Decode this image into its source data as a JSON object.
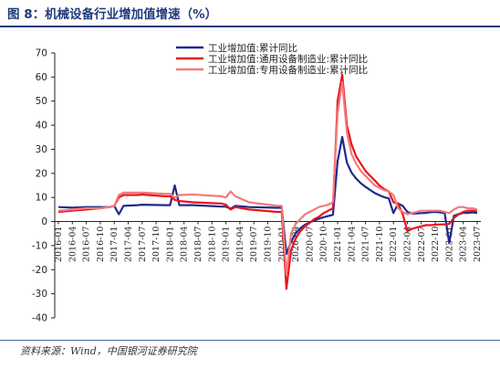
{
  "title": "图 8：机械设备行业增加值增速（%）",
  "source": "资料来源：Wind，中国银河证券研究院",
  "chart_data": {
    "type": "line",
    "title": "图 8：机械设备行业增加值增速（%）",
    "ylim": [
      -40,
      70
    ],
    "yticks": [
      -40,
      -30,
      -20,
      -10,
      0,
      10,
      20,
      30,
      40,
      50,
      60,
      70
    ],
    "xlim": [
      "2016-01",
      "2023-07"
    ],
    "xticks": [
      "2016-01",
      "2016-04",
      "2016-07",
      "2016-10",
      "2017-01",
      "2017-04",
      "2017-07",
      "2017-10",
      "2018-01",
      "2018-04",
      "2018-07",
      "2018-10",
      "2019-01",
      "2019-04",
      "2019-07",
      "2019-10",
      "2020-01",
      "2020-04",
      "2020-07",
      "2020-10",
      "2021-01",
      "2021-04",
      "2021-07",
      "2021-10",
      "2022-01",
      "2022-04",
      "2022-07",
      "2022-10",
      "2023-01",
      "2023-04",
      "2023-07"
    ],
    "grid": false,
    "legend_position": "top-right",
    "series": [
      {
        "name": "工业增加值:累计同比",
        "color": "#1f2a8c",
        "points": [
          [
            "2016-01",
            6
          ],
          [
            "2016-04",
            5.8
          ],
          [
            "2016-07",
            6
          ],
          [
            "2016-10",
            6
          ],
          [
            "2016-12",
            6
          ],
          [
            "2017-01",
            6.5
          ],
          [
            "2017-02",
            3
          ],
          [
            "2017-03",
            6.5
          ],
          [
            "2017-06",
            6.8
          ],
          [
            "2017-07",
            7
          ],
          [
            "2017-12",
            6.8
          ],
          [
            "2018-01",
            6.8
          ],
          [
            "2018-02",
            15
          ],
          [
            "2018-03",
            6.8
          ],
          [
            "2018-06",
            6.8
          ],
          [
            "2018-12",
            6.2
          ],
          [
            "2019-01",
            6.2
          ],
          [
            "2019-02",
            5.3
          ],
          [
            "2019-03",
            6.5
          ],
          [
            "2019-06",
            6
          ],
          [
            "2019-12",
            5.7
          ],
          [
            "2020-01",
            5.7
          ],
          [
            "2020-02",
            -13.5
          ],
          [
            "2020-03",
            -8.4
          ],
          [
            "2020-04",
            -4.9
          ],
          [
            "2020-05",
            -2.8
          ],
          [
            "2020-06",
            -1.3
          ],
          [
            "2020-07",
            -0.4
          ],
          [
            "2020-08",
            0.4
          ],
          [
            "2020-09",
            1.2
          ],
          [
            "2020-10",
            1.8
          ],
          [
            "2020-11",
            2.3
          ],
          [
            "2020-12",
            2.8
          ],
          [
            "2021-01",
            25
          ],
          [
            "2021-02",
            35.1
          ],
          [
            "2021-03",
            24.5
          ],
          [
            "2021-04",
            20.3
          ],
          [
            "2021-05",
            17.8
          ],
          [
            "2021-06",
            15.9
          ],
          [
            "2021-07",
            14.4
          ],
          [
            "2021-08",
            13.1
          ],
          [
            "2021-09",
            11.8
          ],
          [
            "2021-10",
            10.9
          ],
          [
            "2021-11",
            10.1
          ],
          [
            "2021-12",
            9.6
          ],
          [
            "2022-01",
            3.5
          ],
          [
            "2022-02",
            7.5
          ],
          [
            "2022-03",
            6.5
          ],
          [
            "2022-04",
            4
          ],
          [
            "2022-05",
            3.3
          ],
          [
            "2022-06",
            3.4
          ],
          [
            "2022-07",
            3.5
          ],
          [
            "2022-08",
            3.6
          ],
          [
            "2022-09",
            3.9
          ],
          [
            "2022-10",
            4
          ],
          [
            "2022-11",
            3.8
          ],
          [
            "2022-12",
            3.6
          ],
          [
            "2023-01",
            -9
          ],
          [
            "2023-02",
            2.4
          ],
          [
            "2023-03",
            3
          ],
          [
            "2023-04",
            3.6
          ],
          [
            "2023-05",
            3.6
          ],
          [
            "2023-06",
            3.8
          ],
          [
            "2023-07",
            3.6
          ]
        ]
      },
      {
        "name": "工业增加值:通用设备制造业:累计同比",
        "color": "#e8141d",
        "points": [
          [
            "2016-01",
            4
          ],
          [
            "2016-04",
            4.5
          ],
          [
            "2016-07",
            5
          ],
          [
            "2016-10",
            5.5
          ],
          [
            "2016-12",
            6
          ],
          [
            "2017-01",
            6.5
          ],
          [
            "2017-02",
            10
          ],
          [
            "2017-03",
            11
          ],
          [
            "2017-06",
            11
          ],
          [
            "2017-07",
            11.2
          ],
          [
            "2017-12",
            10.5
          ],
          [
            "2018-01",
            10.5
          ],
          [
            "2018-02",
            9
          ],
          [
            "2018-03",
            8.5
          ],
          [
            "2018-06",
            8
          ],
          [
            "2018-12",
            7.5
          ],
          [
            "2019-01",
            7
          ],
          [
            "2019-02",
            5
          ],
          [
            "2019-03",
            6
          ],
          [
            "2019-06",
            5
          ],
          [
            "2019-12",
            4
          ],
          [
            "2020-01",
            4
          ],
          [
            "2020-02",
            -28
          ],
          [
            "2020-03",
            -12
          ],
          [
            "2020-04",
            -7
          ],
          [
            "2020-05",
            -4
          ],
          [
            "2020-06",
            -2
          ],
          [
            "2020-07",
            -0.5
          ],
          [
            "2020-08",
            1
          ],
          [
            "2020-09",
            2
          ],
          [
            "2020-10",
            3.5
          ],
          [
            "2020-11",
            4.5
          ],
          [
            "2020-12",
            5.5
          ],
          [
            "2021-01",
            50
          ],
          [
            "2021-02",
            61
          ],
          [
            "2021-03",
            40
          ],
          [
            "2021-04",
            32
          ],
          [
            "2021-05",
            27
          ],
          [
            "2021-06",
            24
          ],
          [
            "2021-07",
            21
          ],
          [
            "2021-08",
            19
          ],
          [
            "2021-09",
            17
          ],
          [
            "2021-10",
            15
          ],
          [
            "2021-11",
            13.5
          ],
          [
            "2021-12",
            12.5
          ],
          [
            "2022-01",
            8
          ],
          [
            "2022-02",
            7.5
          ],
          [
            "2022-03",
            3
          ],
          [
            "2022-04",
            -4
          ],
          [
            "2022-05",
            -3
          ],
          [
            "2022-06",
            -2.5
          ],
          [
            "2022-07",
            -2
          ],
          [
            "2022-08",
            -1.5
          ],
          [
            "2022-09",
            -1.5
          ],
          [
            "2022-10",
            -1.3
          ],
          [
            "2022-11",
            -1.2
          ],
          [
            "2022-12",
            -1.2
          ],
          [
            "2023-01",
            -1
          ],
          [
            "2023-02",
            1.5
          ],
          [
            "2023-03",
            3
          ],
          [
            "2023-04",
            4
          ],
          [
            "2023-05",
            4.5
          ],
          [
            "2023-06",
            4.5
          ],
          [
            "2023-07",
            4.5
          ]
        ]
      },
      {
        "name": "工业增加值:专用设备制造业:累计同比",
        "color": "#f27b7b",
        "points": [
          [
            "2016-01",
            4.5
          ],
          [
            "2016-04",
            5
          ],
          [
            "2016-07",
            5.5
          ],
          [
            "2016-10",
            5.5
          ],
          [
            "2016-12",
            6
          ],
          [
            "2017-01",
            6.5
          ],
          [
            "2017-02",
            11
          ],
          [
            "2017-03",
            12
          ],
          [
            "2017-06",
            12
          ],
          [
            "2017-07",
            12
          ],
          [
            "2017-12",
            11.5
          ],
          [
            "2018-01",
            11.5
          ],
          [
            "2018-02",
            10
          ],
          [
            "2018-03",
            11
          ],
          [
            "2018-06",
            11.2
          ],
          [
            "2018-12",
            10.5
          ],
          [
            "2019-01",
            10
          ],
          [
            "2019-02",
            12.5
          ],
          [
            "2019-03",
            10.5
          ],
          [
            "2019-06",
            8
          ],
          [
            "2019-12",
            6.5
          ],
          [
            "2020-01",
            6.5
          ],
          [
            "2020-02",
            -22
          ],
          [
            "2020-03",
            -5
          ],
          [
            "2020-04",
            -1
          ],
          [
            "2020-05",
            1
          ],
          [
            "2020-06",
            3
          ],
          [
            "2020-07",
            4
          ],
          [
            "2020-08",
            5
          ],
          [
            "2020-09",
            6
          ],
          [
            "2020-10",
            6.5
          ],
          [
            "2020-11",
            7
          ],
          [
            "2020-12",
            8
          ],
          [
            "2021-01",
            45
          ],
          [
            "2021-02",
            58
          ],
          [
            "2021-03",
            37
          ],
          [
            "2021-04",
            28
          ],
          [
            "2021-05",
            24
          ],
          [
            "2021-06",
            21
          ],
          [
            "2021-07",
            19
          ],
          [
            "2021-08",
            17
          ],
          [
            "2021-09",
            15
          ],
          [
            "2021-10",
            14
          ],
          [
            "2021-11",
            13
          ],
          [
            "2021-12",
            12.5
          ],
          [
            "2022-01",
            11
          ],
          [
            "2022-02",
            5.5
          ],
          [
            "2022-03",
            4
          ],
          [
            "2022-04",
            3
          ],
          [
            "2022-05",
            3.5
          ],
          [
            "2022-06",
            4
          ],
          [
            "2022-07",
            4.5
          ],
          [
            "2022-08",
            4.5
          ],
          [
            "2022-09",
            4.5
          ],
          [
            "2022-10",
            4.5
          ],
          [
            "2022-11",
            4.5
          ],
          [
            "2022-12",
            4
          ],
          [
            "2023-01",
            3.5
          ],
          [
            "2023-02",
            5
          ],
          [
            "2023-03",
            6
          ],
          [
            "2023-04",
            6
          ],
          [
            "2023-05",
            5.5
          ],
          [
            "2023-06",
            5.5
          ],
          [
            "2023-07",
            5
          ]
        ]
      }
    ]
  }
}
